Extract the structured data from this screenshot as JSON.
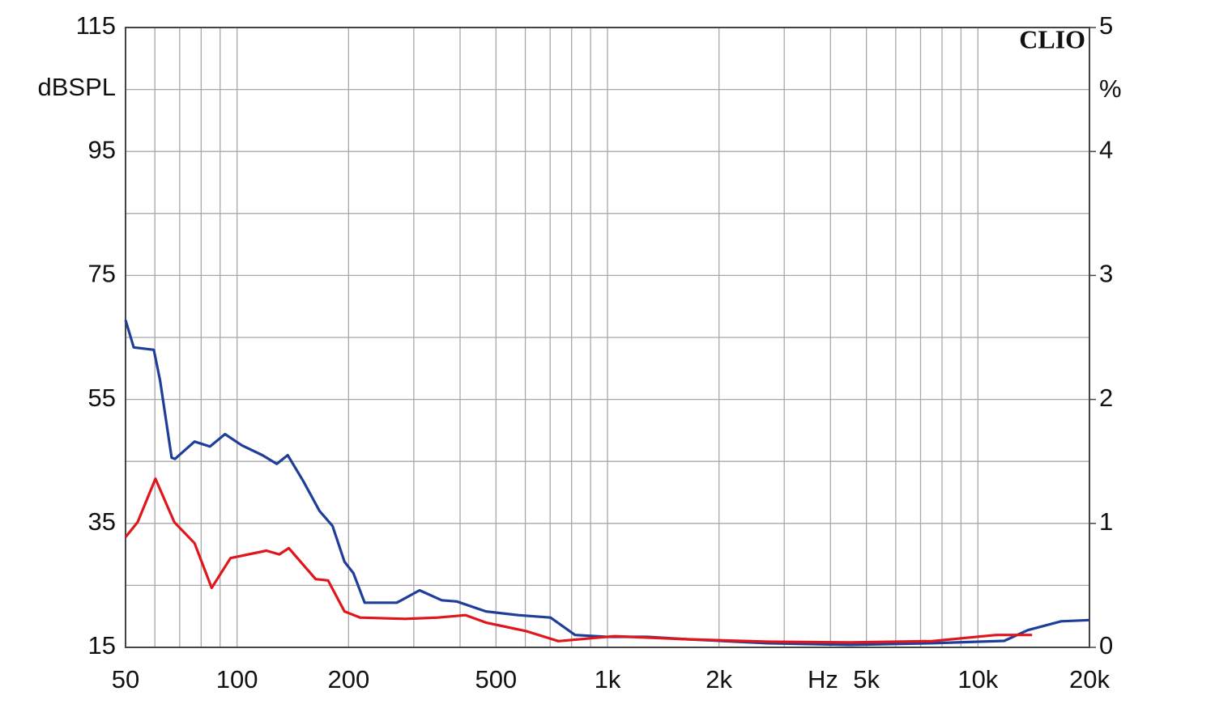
{
  "chart_data": {
    "type": "line",
    "brand": "CLIO",
    "ylabel": "dBSPL",
    "y2label": "%",
    "xlabel": "Hz",
    "xscale": "log",
    "xlim": [
      50,
      20000
    ],
    "xticks": [
      50,
      100,
      200,
      500,
      {
        "value": 1000,
        "label": "1k"
      },
      {
        "value": 2000,
        "label": "2k"
      },
      {
        "value": 5000,
        "label": "5k"
      },
      {
        "value": 10000,
        "label": "10k"
      },
      {
        "value": 20000,
        "label": "20k"
      }
    ],
    "xgrid_minor": [
      60,
      70,
      80,
      90,
      300,
      400,
      600,
      700,
      800,
      900,
      3000,
      4000,
      6000,
      7000,
      8000,
      9000
    ],
    "ylim": [
      15,
      115
    ],
    "yticks": [
      15,
      35,
      55,
      75,
      95,
      115
    ],
    "ygrid_minor": [
      25,
      45,
      65,
      85,
      105
    ],
    "y2lim": [
      0,
      5
    ],
    "y2ticks": [
      0,
      1,
      2,
      3,
      4,
      5
    ],
    "grid": true,
    "series": [
      {
        "color": "#1f3e9a",
        "axis": "y2",
        "x": [
          50,
          52.6,
          59.6,
          62,
          66.6,
          68,
          76.8,
          84.5,
          92.8,
          103,
          117,
          128,
          137,
          151,
          167,
          181,
          195,
          206,
          221,
          270,
          311,
          357,
          392,
          470,
          575,
          702,
          817,
          995,
          1275,
          1643,
          2705,
          4535,
          7500,
          11770,
          13660,
          16770,
          20000
        ],
        "values": [
          2.64,
          2.42,
          2.4,
          2.15,
          1.53,
          1.52,
          1.66,
          1.62,
          1.72,
          1.63,
          1.55,
          1.48,
          1.55,
          1.34,
          1.1,
          0.98,
          0.69,
          0.6,
          0.36,
          0.36,
          0.46,
          0.38,
          0.37,
          0.29,
          0.26,
          0.24,
          0.1,
          0.085,
          0.085,
          0.065,
          0.033,
          0.02,
          0.033,
          0.052,
          0.14,
          0.21,
          0.22
        ]
      },
      {
        "color": "#e0161c",
        "axis": "y2",
        "x": [
          50,
          53.9,
          60.2,
          67.7,
          76.8,
          85.4,
          96,
          120,
          130,
          138,
          163,
          176,
          195,
          215,
          284,
          348,
          414,
          470,
          605,
          737,
          1045,
          1643,
          2705,
          4535,
          7500,
          11200,
          14000
        ],
        "values": [
          0.89,
          1.01,
          1.36,
          1.01,
          0.84,
          0.48,
          0.72,
          0.78,
          0.75,
          0.8,
          0.55,
          0.54,
          0.29,
          0.24,
          0.23,
          0.24,
          0.26,
          0.2,
          0.13,
          0.05,
          0.09,
          0.065,
          0.046,
          0.04,
          0.05,
          0.1,
          0.1
        ]
      }
    ]
  }
}
